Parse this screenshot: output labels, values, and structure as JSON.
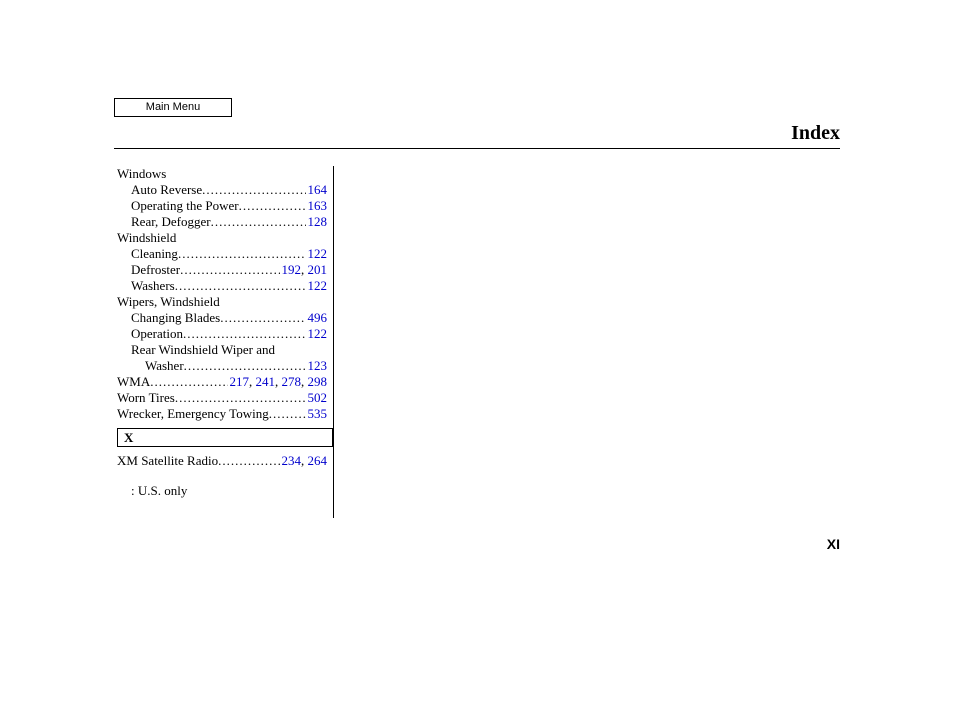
{
  "header": {
    "main_menu_label": "Main Menu",
    "title": "Index"
  },
  "footer": {
    "page_number": "XI"
  },
  "note": ":   U.S. only",
  "section_x_label": "X",
  "link_color": "#0000cc",
  "text_color": "#000000",
  "background_color": "#ffffff",
  "font_family_serif": "Times New Roman",
  "font_family_sans": "Arial",
  "entries": {
    "windows": {
      "label": "Windows"
    },
    "auto_reverse": {
      "label": "Auto Reverse",
      "pages": [
        "164"
      ]
    },
    "operating_power": {
      "label": "Operating the Power",
      "pages": [
        "163"
      ]
    },
    "rear_defogger": {
      "label": "Rear, Defogger",
      "pages": [
        "128"
      ]
    },
    "windshield": {
      "label": "Windshield"
    },
    "cleaning": {
      "label": "Cleaning",
      "pages": [
        "122"
      ]
    },
    "defroster": {
      "label": "Defroster",
      "pages": [
        "192",
        "201"
      ]
    },
    "washers": {
      "label": "Washers",
      "pages": [
        "122"
      ]
    },
    "wipers": {
      "label": "Wipers, Windshield"
    },
    "changing_blades": {
      "label": "Changing Blades",
      "pages": [
        "496"
      ]
    },
    "operation": {
      "label": "Operation",
      "pages": [
        "122"
      ]
    },
    "rear_wiper_line1": {
      "label": "Rear Windshield Wiper and"
    },
    "rear_wiper_line2": {
      "label": "Washer",
      "pages": [
        "123"
      ]
    },
    "wma": {
      "label": "WMA",
      "pages": [
        "217",
        "241",
        "278",
        "298"
      ]
    },
    "worn_tires": {
      "label": "Worn Tires",
      "pages": [
        "502"
      ]
    },
    "wrecker": {
      "label": "Wrecker, Emergency Towing",
      "pages": [
        "535"
      ]
    },
    "xm_radio": {
      "label": "XM Satellite Radio",
      "pages": [
        "234",
        "264"
      ]
    }
  }
}
